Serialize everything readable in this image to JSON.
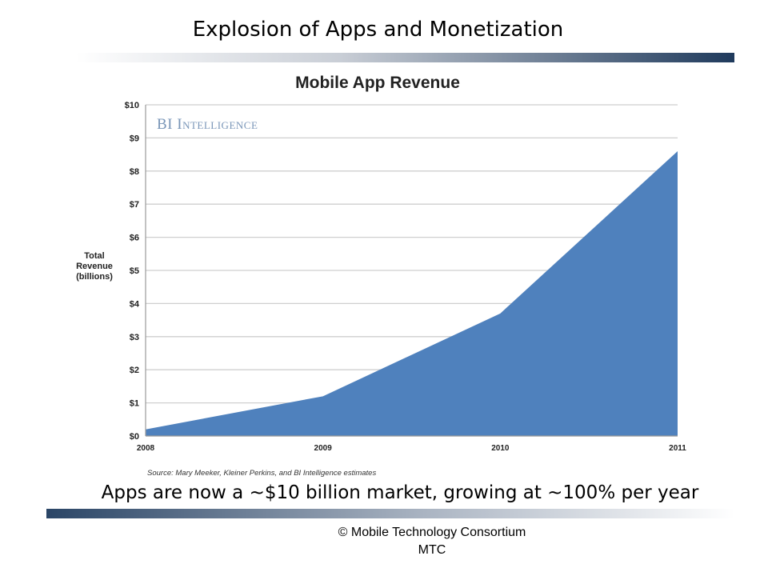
{
  "slide": {
    "title": "Explosion of Apps and Monetization",
    "caption": "Apps are now a ~$10 billion market, growing at ~100% per year",
    "footer_line1": "©  Mobile Technology Consortium",
    "footer_line2": "MTC"
  },
  "chart_data": {
    "type": "area",
    "title": "Mobile App Revenue",
    "watermark": "BI Intelligence",
    "ylabel": "Total Revenue (billions)",
    "source": "Source: Mary Meeker, Kleiner Perkins, and BI Intelligence estimates",
    "x": [
      "2008",
      "2009",
      "2010",
      "2011"
    ],
    "values": [
      0.2,
      1.2,
      3.7,
      8.6
    ],
    "ylim": [
      0,
      10
    ],
    "ytick_labels": [
      "$0",
      "$1",
      "$2",
      "$3",
      "$4",
      "$5",
      "$6",
      "$7",
      "$8",
      "$9",
      "$10"
    ],
    "grid": true,
    "fill_color": "#4f81bd"
  }
}
